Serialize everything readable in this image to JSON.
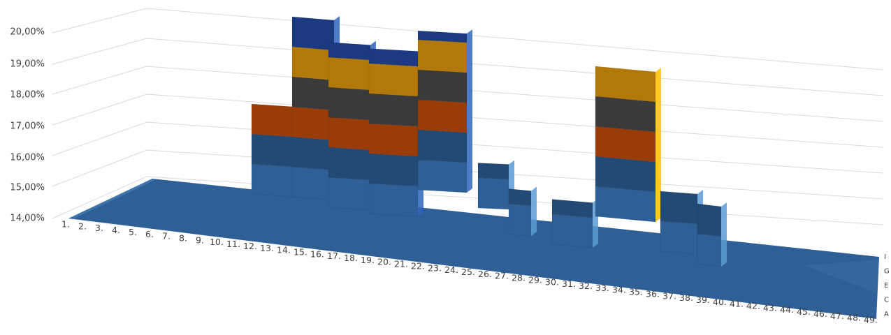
{
  "chart_data": {
    "type": "surface",
    "title": "",
    "xlabel": "",
    "ylabel": "",
    "y_axis": {
      "ticks": [
        "14,00%",
        "15,00%",
        "16,00%",
        "17,00%",
        "18,00%",
        "19,00%",
        "20,00%"
      ],
      "ylim": [
        0.14,
        0.2
      ],
      "format": "percent"
    },
    "x_axis": {
      "ticks": [
        "1.",
        "2.",
        "3.",
        "4.",
        "5.",
        "6.",
        "7.",
        "8.",
        "9.",
        "10.",
        "11.",
        "12.",
        "13.",
        "14.",
        "15.",
        "16.",
        "17.",
        "18.",
        "19.",
        "20.",
        "21.",
        "22.",
        "23.",
        "24.",
        "25.",
        "26.",
        "27.",
        "28.",
        "29.",
        "30.",
        "31.",
        "32.",
        "33.",
        "34.",
        "35.",
        "36.",
        "37.",
        "38.",
        "39.",
        "40.",
        "41.",
        "42.",
        "43.",
        "44.",
        "45.",
        "46.",
        "47.",
        "48.",
        "49."
      ]
    },
    "series_axis": {
      "ticks": [
        "A",
        "C",
        "E",
        "G",
        "I"
      ]
    },
    "grid": true,
    "legend": "none",
    "band_colors": [
      "#2e5f96",
      "#234a75",
      "#9a3c08",
      "#3a3a3a",
      "#b37908",
      "#1c3a80",
      "#2e5a19"
    ],
    "band_top_colors": [
      "#4e86c4",
      "#5b9bd5",
      "#ed7d31",
      "#8c8c8c",
      "#ffc000",
      "#2f65c0",
      "#70ad47"
    ],
    "series": [
      {
        "x": [
          "15.",
          "16.",
          "17.",
          "18.",
          "19.",
          "20.",
          "21.",
          "22.",
          "23.",
          "24.",
          "25.",
          "26.",
          "27.",
          "28.",
          "29.",
          "30.",
          "31.",
          "32.",
          "33.",
          "34.",
          "35.",
          "36.",
          "37.",
          "38.",
          "39.",
          "40.",
          "41.",
          "42."
        ],
        "values": [
          0.17,
          0.17,
          0.2,
          0.2,
          0.16,
          0.2,
          0.2,
          0.2,
          0.2,
          0.19,
          0.19,
          0.19,
          0.19,
          0.19,
          0.14,
          0.155,
          0.155,
          0.14,
          0.14,
          0.155,
          0.155,
          0.155,
          0.155,
          0.19,
          0.19,
          0.16,
          0.16,
          0.16
        ]
      }
    ]
  }
}
